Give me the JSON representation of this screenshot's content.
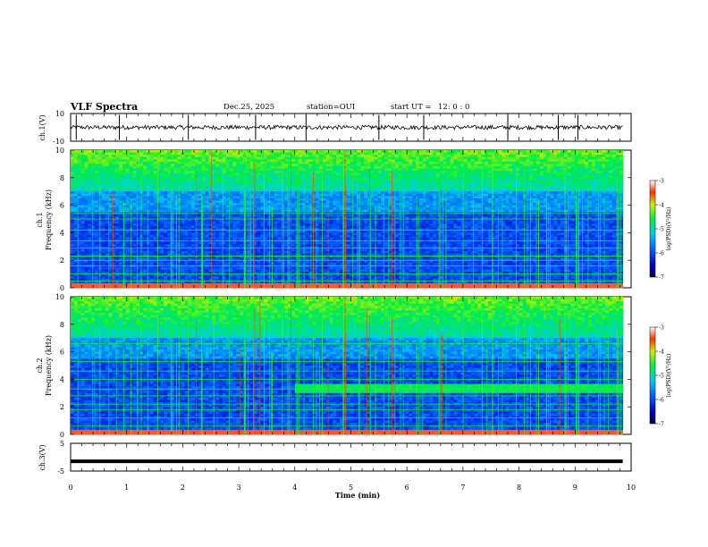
{
  "header": {
    "title": "VLF Spectra",
    "date": "Dec.25, 2025",
    "station": "station=OUI",
    "start_label": "start  UT  =",
    "start_time": "12: 0  : 0"
  },
  "chart_data": [
    {
      "type": "line",
      "name": "ch1-waveform",
      "ylabel": "ch.1(V)",
      "ylim": [
        -10,
        10
      ],
      "yticks": [
        "10",
        "-10"
      ],
      "baseline": 0,
      "noise_amplitude": 1.5,
      "spike_times_min": [
        0.1,
        0.87,
        2.1,
        3.3,
        4.2,
        5.5,
        6.3,
        7.8,
        8.7,
        9.05
      ]
    },
    {
      "type": "heatmap",
      "name": "ch1-spectrogram",
      "ylabel": "Frequency (kHz)",
      "channel_label": "ch.1",
      "xlim": [
        0,
        10
      ],
      "ylim": [
        0,
        10
      ],
      "yticks": [
        "0",
        "2",
        "4",
        "6",
        "8",
        "10"
      ],
      "colorbar": {
        "label": "log(PSD)(V²/Hz)",
        "ticks": [
          "-3",
          "-4",
          "-5",
          "-6",
          "-7"
        ],
        "range": [
          -7,
          -3
        ]
      },
      "persistent_line_freqs_khz": [
        0.5,
        1.0,
        1.6,
        2.0,
        2.3,
        2.9,
        3.4,
        4.2,
        5.0,
        5.4
      ],
      "bursts_until_min": 9.85
    },
    {
      "type": "heatmap",
      "name": "ch2-spectrogram",
      "ylabel": "Frequency (kHz)",
      "channel_label": "ch.2",
      "xlim": [
        0,
        10
      ],
      "ylim": [
        0,
        10
      ],
      "yticks": [
        "0",
        "2",
        "4",
        "6",
        "8",
        "10"
      ],
      "colorbar": {
        "label": "log(PSD)(V²/Hz)",
        "ticks": [
          "-3",
          "-4",
          "-5",
          "-6",
          "-7"
        ],
        "range": [
          -7,
          -3
        ]
      },
      "persistent_line_freqs_khz": [
        0.6,
        1.2,
        1.8,
        2.2,
        2.8,
        3.3,
        4.0,
        4.6,
        5.3,
        6.6
      ],
      "band_start_min": 4.0,
      "band_khz": [
        3.0,
        3.6
      ],
      "bursts_until_min": 9.85
    },
    {
      "type": "line",
      "name": "ch3-waveform",
      "ylabel": "ch.3(V)",
      "ylim": [
        -5,
        5
      ],
      "yticks": [
        "5",
        "-5"
      ],
      "constant_value": -1.5
    }
  ],
  "xaxis": {
    "label": "Time (min)",
    "xlim": [
      0,
      10
    ],
    "ticks": [
      "0",
      "1",
      "2",
      "3",
      "4",
      "5",
      "6",
      "7",
      "8",
      "9",
      "10"
    ]
  }
}
